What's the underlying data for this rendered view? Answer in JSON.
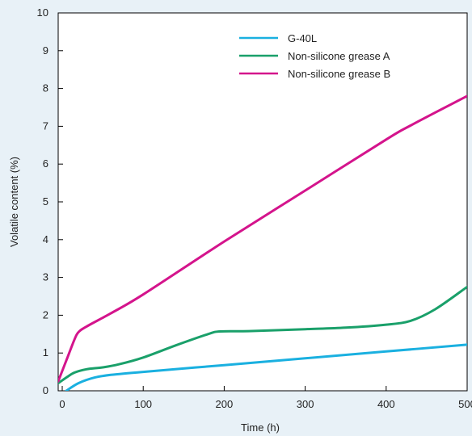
{
  "chart_data": {
    "type": "line",
    "xlabel": "Time (h)",
    "ylabel": "Volatile content (%)",
    "xlim": [
      -5,
      500
    ],
    "ylim": [
      0,
      10
    ],
    "x_ticks": [
      0,
      100,
      200,
      300,
      400,
      500
    ],
    "y_ticks": [
      0,
      1,
      2,
      3,
      4,
      5,
      6,
      7,
      8,
      9,
      10
    ],
    "grid": false,
    "legend_position": "top-right",
    "series": [
      {
        "name": "G-40L",
        "color": "#1ab0e0",
        "points": [
          [
            5,
            0.0
          ],
          [
            20,
            0.2
          ],
          [
            40,
            0.35
          ],
          [
            60,
            0.42
          ],
          [
            100,
            0.5
          ],
          [
            200,
            0.68
          ],
          [
            300,
            0.86
          ],
          [
            400,
            1.04
          ],
          [
            500,
            1.22
          ]
        ]
      },
      {
        "name": "Non-silicone grease A",
        "color": "#1aa06a",
        "points": [
          [
            -5,
            0.2
          ],
          [
            5,
            0.35
          ],
          [
            15,
            0.48
          ],
          [
            30,
            0.57
          ],
          [
            50,
            0.62
          ],
          [
            70,
            0.7
          ],
          [
            100,
            0.88
          ],
          [
            140,
            1.2
          ],
          [
            180,
            1.5
          ],
          [
            195,
            1.57
          ],
          [
            230,
            1.58
          ],
          [
            300,
            1.63
          ],
          [
            350,
            1.67
          ],
          [
            400,
            1.75
          ],
          [
            430,
            1.85
          ],
          [
            460,
            2.15
          ],
          [
            500,
            2.75
          ]
        ]
      },
      {
        "name": "Non-silicone grease B",
        "color": "#d4148c",
        "points": [
          [
            -5,
            0.25
          ],
          [
            5,
            0.8
          ],
          [
            15,
            1.35
          ],
          [
            20,
            1.55
          ],
          [
            30,
            1.7
          ],
          [
            60,
            2.05
          ],
          [
            100,
            2.55
          ],
          [
            200,
            3.95
          ],
          [
            300,
            5.3
          ],
          [
            400,
            6.65
          ],
          [
            430,
            7.02
          ],
          [
            500,
            7.8
          ]
        ]
      }
    ]
  }
}
